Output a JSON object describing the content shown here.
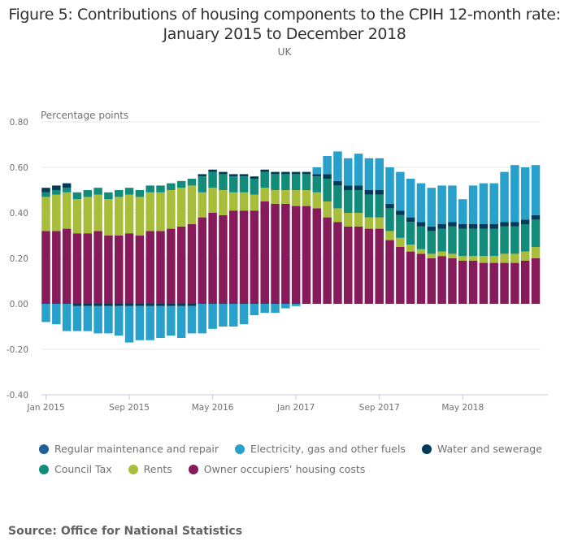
{
  "title_line1": "Figure 5: Contributions of housing components to the CPIH 12-month rate:",
  "title_line2": "January 2015 to December 2018",
  "subtitle": "UK",
  "source": "Source: Office for National Statistics",
  "chart_data": {
    "type": "bar",
    "stacked": true,
    "title": "Figure 5: Contributions of housing components to the CPIH 12-month rate: January 2015 to December 2018",
    "subtitle": "UK",
    "ylabel": "Percentage points",
    "xlabel": "",
    "ylim": [
      -0.4,
      0.8
    ],
    "yticks": [
      "0.80",
      "0.60",
      "0.40",
      "0.20",
      "0.00",
      "-0.20",
      "-0.40"
    ],
    "ytick_values": [
      0.8,
      0.6,
      0.4,
      0.2,
      0.0,
      -0.2,
      -0.4
    ],
    "grid": true,
    "legend_position": "bottom",
    "xtick_labels": [
      {
        "index": 0,
        "label": "Jan 2015"
      },
      {
        "index": 8,
        "label": "Sep 2015"
      },
      {
        "index": 16,
        "label": "May 2016"
      },
      {
        "index": 24,
        "label": "Jan 2017"
      },
      {
        "index": 32,
        "label": "Sep 2017"
      },
      {
        "index": 40,
        "label": "May 2018"
      }
    ],
    "categories": [
      "Jan 2015",
      "Feb 2015",
      "Mar 2015",
      "Apr 2015",
      "May 2015",
      "Jun 2015",
      "Jul 2015",
      "Aug 2015",
      "Sep 2015",
      "Oct 2015",
      "Nov 2015",
      "Dec 2015",
      "Jan 2016",
      "Feb 2016",
      "Mar 2016",
      "Apr 2016",
      "May 2016",
      "Jun 2016",
      "Jul 2016",
      "Aug 2016",
      "Sep 2016",
      "Oct 2016",
      "Nov 2016",
      "Dec 2016",
      "Jan 2017",
      "Feb 2017",
      "Mar 2017",
      "Apr 2017",
      "May 2017",
      "Jun 2017",
      "Jul 2017",
      "Aug 2017",
      "Sep 2017",
      "Oct 2017",
      "Nov 2017",
      "Dec 2017",
      "Jan 2018",
      "Feb 2018",
      "Mar 2018",
      "Apr 2018",
      "May 2018",
      "Jun 2018",
      "Jul 2018",
      "Aug 2018",
      "Sep 2018",
      "Oct 2018",
      "Nov 2018",
      "Dec 2018"
    ],
    "series": [
      {
        "name": "Owner occupiers’ housing costs",
        "color": "#871a5b",
        "values": [
          0.32,
          0.32,
          0.33,
          0.31,
          0.31,
          0.32,
          0.3,
          0.3,
          0.31,
          0.3,
          0.32,
          0.32,
          0.33,
          0.34,
          0.35,
          0.38,
          0.4,
          0.39,
          0.41,
          0.41,
          0.41,
          0.45,
          0.44,
          0.44,
          0.43,
          0.43,
          0.42,
          0.38,
          0.36,
          0.34,
          0.34,
          0.33,
          0.33,
          0.28,
          0.25,
          0.23,
          0.22,
          0.2,
          0.21,
          0.2,
          0.19,
          0.19,
          0.18,
          0.18,
          0.18,
          0.18,
          0.19,
          0.2
        ]
      },
      {
        "name": "Rents",
        "color": "#a8bd3a",
        "values": [
          0.15,
          0.16,
          0.16,
          0.15,
          0.16,
          0.16,
          0.16,
          0.17,
          0.17,
          0.17,
          0.17,
          0.17,
          0.17,
          0.17,
          0.17,
          0.11,
          0.11,
          0.11,
          0.08,
          0.08,
          0.07,
          0.06,
          0.06,
          0.06,
          0.07,
          0.07,
          0.07,
          0.07,
          0.06,
          0.06,
          0.06,
          0.05,
          0.05,
          0.04,
          0.04,
          0.03,
          0.02,
          0.02,
          0.02,
          0.02,
          0.02,
          0.02,
          0.03,
          0.03,
          0.04,
          0.04,
          0.04,
          0.05
        ]
      },
      {
        "name": "Council Tax",
        "color": "#118c7b",
        "values": [
          0.02,
          0.02,
          0.02,
          0.03,
          0.03,
          0.03,
          0.03,
          0.03,
          0.03,
          0.03,
          0.03,
          0.03,
          0.03,
          0.03,
          0.03,
          0.07,
          0.07,
          0.07,
          0.07,
          0.07,
          0.07,
          0.07,
          0.07,
          0.07,
          0.07,
          0.07,
          0.07,
          0.1,
          0.1,
          0.1,
          0.1,
          0.1,
          0.1,
          0.1,
          0.1,
          0.1,
          0.1,
          0.1,
          0.1,
          0.12,
          0.12,
          0.12,
          0.12,
          0.12,
          0.12,
          0.12,
          0.12,
          0.12
        ]
      },
      {
        "name": "Water and sewerage",
        "color": "#003c57",
        "values": [
          0.02,
          0.02,
          0.02,
          -0.01,
          -0.01,
          -0.01,
          -0.01,
          -0.01,
          -0.01,
          -0.01,
          -0.01,
          -0.01,
          -0.01,
          -0.01,
          -0.01,
          0.01,
          0.01,
          0.01,
          0.01,
          0.01,
          0.01,
          0.01,
          0.01,
          0.01,
          0.01,
          0.01,
          0.01,
          0.02,
          0.02,
          0.02,
          0.02,
          0.02,
          0.02,
          0.02,
          0.02,
          0.02,
          0.02,
          0.02,
          0.02,
          0.02,
          0.02,
          0.02,
          0.02,
          0.02,
          0.02,
          0.02,
          0.02,
          0.02
        ]
      },
      {
        "name": "Electricity, gas and other fuels",
        "color": "#27a0cc",
        "values": [
          -0.08,
          -0.09,
          -0.12,
          -0.11,
          -0.11,
          -0.12,
          -0.12,
          -0.13,
          -0.16,
          -0.15,
          -0.15,
          -0.14,
          -0.13,
          -0.14,
          -0.12,
          -0.13,
          -0.11,
          -0.1,
          -0.1,
          -0.09,
          -0.05,
          -0.04,
          -0.04,
          -0.02,
          -0.01,
          0.0,
          0.03,
          0.08,
          0.13,
          0.12,
          0.14,
          0.14,
          0.14,
          0.16,
          0.17,
          0.17,
          0.17,
          0.17,
          0.17,
          0.16,
          0.11,
          0.17,
          0.18,
          0.18,
          0.22,
          0.25,
          0.23,
          0.22
        ]
      },
      {
        "name": "Regular maintenance and repair",
        "color": "#206095",
        "values": [
          0,
          0,
          0,
          0,
          0,
          0,
          0,
          0,
          0,
          0,
          0,
          0,
          0,
          0,
          0,
          0,
          0,
          0,
          0,
          0,
          0,
          0,
          0,
          0,
          0,
          0,
          0,
          0,
          0,
          0,
          0,
          0,
          0,
          0,
          0,
          0,
          0,
          0,
          0,
          0,
          0,
          0,
          0,
          0,
          0,
          0,
          0,
          0
        ]
      }
    ],
    "legend": [
      {
        "label": "Regular maintenance and repair",
        "color": "#206095"
      },
      {
        "label": "Electricity, gas and other fuels",
        "color": "#27a0cc"
      },
      {
        "label": "Water and sewerage",
        "color": "#003c57"
      },
      {
        "label": "Council Tax",
        "color": "#118c7b"
      },
      {
        "label": "Rents",
        "color": "#a8bd3a"
      },
      {
        "label": "Owner occupiers’ housing costs",
        "color": "#871a5b"
      }
    ]
  }
}
